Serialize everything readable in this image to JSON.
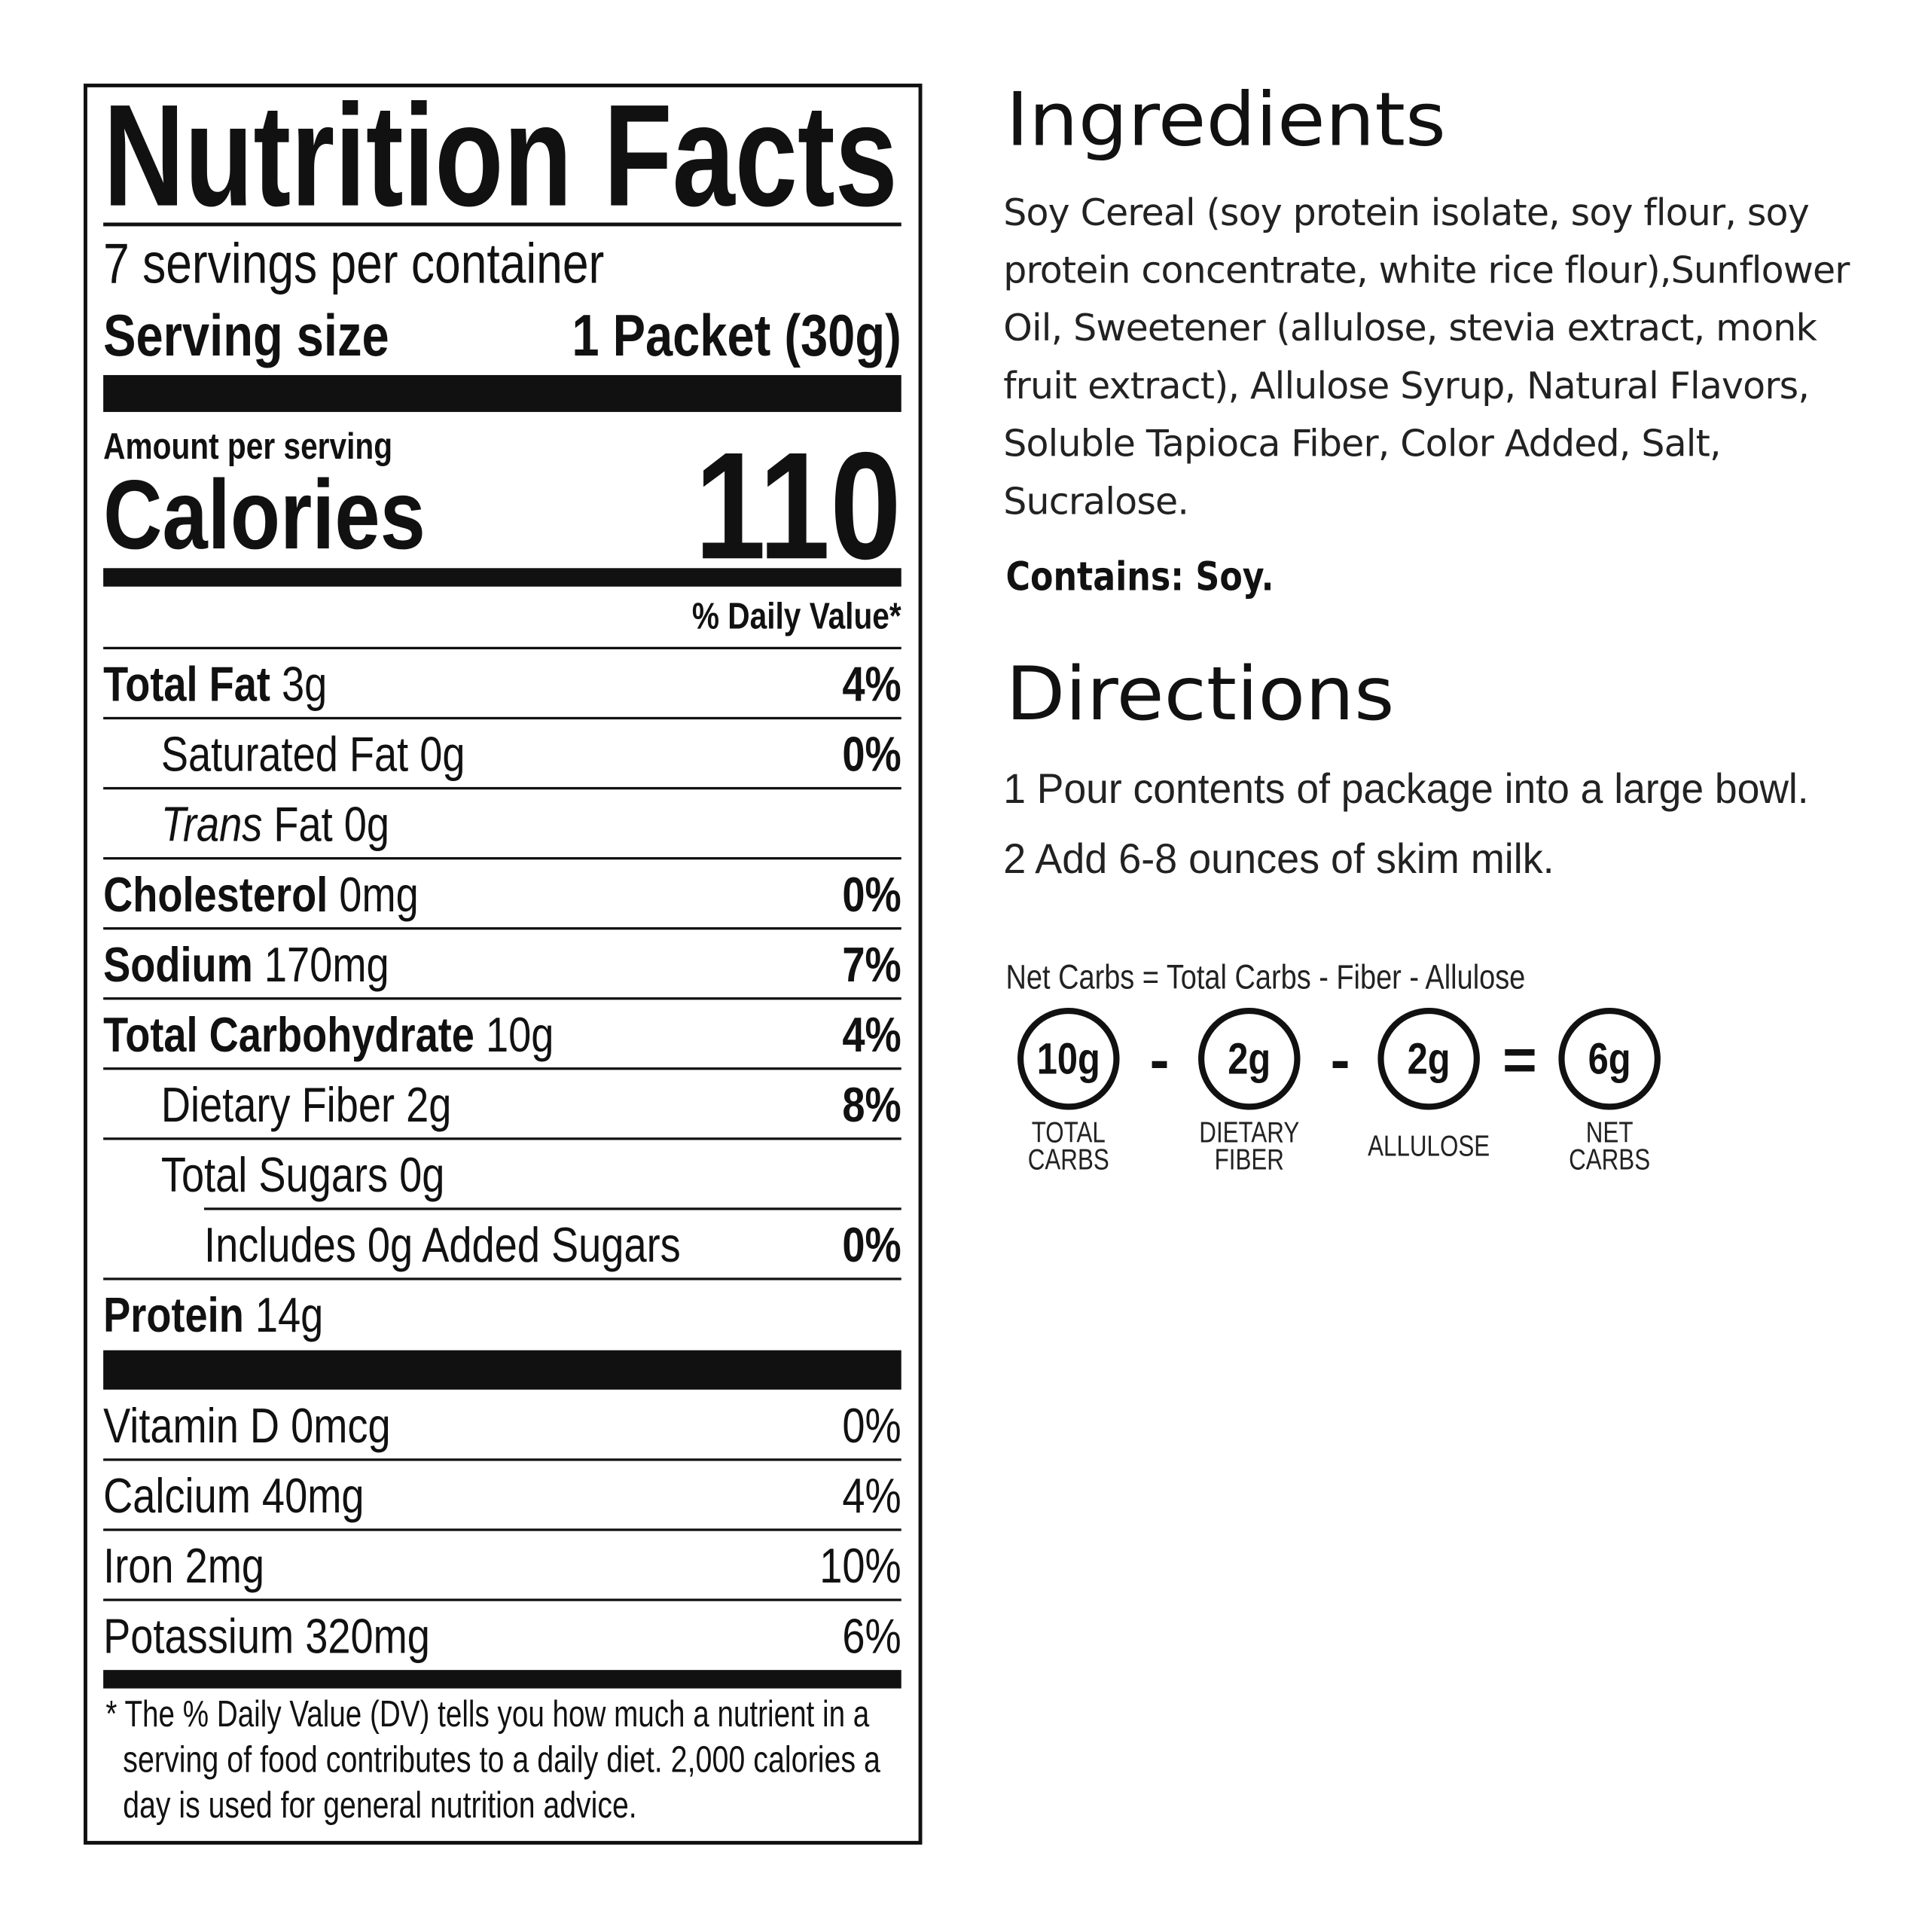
{
  "nutrition_facts": {
    "title": "Nutrition Facts",
    "servings": "7 servings per container",
    "serving_size_label": "Serving size",
    "serving_size_value": "1 Packet (30g)",
    "amount_per_serving": "Amount per serving",
    "calories_label": "Calories",
    "calories_value": "110",
    "dv_header": "% Daily Value*",
    "rows": [
      {
        "name": "Total Fat",
        "amount": "3g",
        "dv": "4%"
      },
      {
        "name": "Saturated Fat",
        "amount": "0g",
        "dv": "0%"
      },
      {
        "name": "Trans",
        "amount": "Fat 0g"
      },
      {
        "name": "Cholesterol",
        "amount": "0mg",
        "dv": "0%"
      },
      {
        "name": "Sodium",
        "amount": "170mg",
        "dv": "7%"
      },
      {
        "name": "Total Carbohydrate",
        "amount": "10g",
        "dv": "4%"
      },
      {
        "name": "Dietary Fiber",
        "amount": "2g",
        "dv": "8%"
      },
      {
        "name": "Total Sugars",
        "amount": "0g"
      },
      {
        "name": "Includes 0g Added Sugars",
        "dv": "0%"
      },
      {
        "name": "Protein",
        "amount": "14g"
      }
    ],
    "vitamins": [
      {
        "name": "Vitamin D",
        "amount": "0mcg",
        "dv": "0%"
      },
      {
        "name": "Calcium",
        "amount": "40mg",
        "dv": "4%"
      },
      {
        "name": "Iron",
        "amount": "2mg",
        "dv": "10%"
      },
      {
        "name": "Potassium",
        "amount": "320mg",
        "dv": "6%"
      }
    ],
    "footnote": [
      "* The % Daily Value (DV) tells you how much a nutrient in a",
      "serving of food contributes to a daily diet. 2,000 calories a",
      "day is used for general nutrition advice."
    ]
  },
  "ingredients": {
    "title": "Ingredients",
    "text": "Soy Cereal (soy protein isolate, soy flour, soy protein concentrate, white rice flour),Sunflower Oil, Sweetener (allulose, stevia extract, monk fruit extract), Allulose Syrup, Natural Flavors, Soluble Tapioca Fiber, Color Added, Salt, Sucralose.",
    "contains": "Contains: Soy."
  },
  "directions": {
    "title": "Directions",
    "steps": [
      "1 Pour contents of package into a large bowl.",
      "2 Add 6-8 ounces of skim milk."
    ]
  },
  "net_carbs": {
    "formula": "Net Carbs = Total Carbs - Fiber - Allulose",
    "items": [
      {
        "value": "10g",
        "label": [
          "TOTAL",
          "CARBS"
        ]
      },
      {
        "value": "2g",
        "label": [
          "DIETARY",
          "FIBER"
        ]
      },
      {
        "value": "2g",
        "label": [
          "ALLULOSE"
        ]
      },
      {
        "value": "6g",
        "label": [
          "NET",
          "CARBS"
        ]
      }
    ],
    "operators": [
      "-",
      "-",
      "="
    ]
  }
}
